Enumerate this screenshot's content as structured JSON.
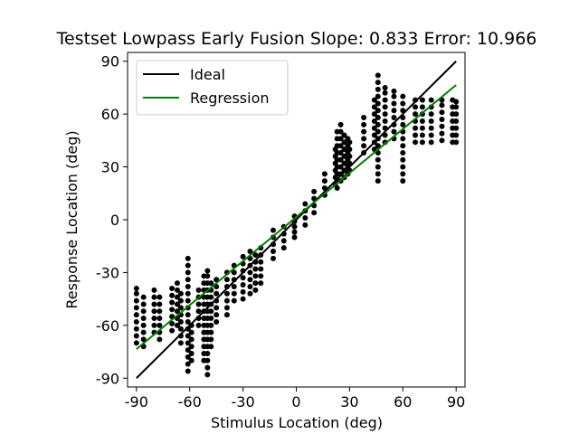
{
  "chart_data": {
    "type": "scatter",
    "title": "Testset Lowpass Early Fusion Slope: 0.833 Error: 10.966",
    "xlabel": "Stimulus Location (deg)",
    "ylabel": "Response Location (deg)",
    "xlim": [
      -95,
      95
    ],
    "ylim": [
      -95,
      95
    ],
    "xticks": [
      "-90",
      "-60",
      "-30",
      "0",
      "30",
      "60",
      "90"
    ],
    "yticks": [
      "-90",
      "-60",
      "-30",
      "0",
      "30",
      "60",
      "90"
    ],
    "grid": false,
    "legend_position": "top-left",
    "lines": [
      {
        "name": "Ideal",
        "color": "#000000",
        "x": [
          -90,
          90
        ],
        "y": [
          -90,
          90
        ]
      },
      {
        "name": "Regression",
        "color": "#008000",
        "x": [
          -90,
          90
        ],
        "y": [
          -73.5,
          76.5
        ]
      }
    ],
    "scatter_color": "#000000",
    "scatter_columns": [
      {
        "x": -90,
        "y": [
          -70,
          -66,
          -62,
          -58,
          -54,
          -50,
          -46,
          -42,
          -39
        ]
      },
      {
        "x": -86,
        "y": [
          -72,
          -68,
          -64,
          -60,
          -56,
          -52,
          -48,
          -44
        ]
      },
      {
        "x": -80,
        "y": [
          -64,
          -60,
          -56,
          -52,
          -48,
          -44,
          -40
        ]
      },
      {
        "x": -77,
        "y": [
          -68,
          -64,
          -60,
          -56,
          -52,
          -48,
          -44
        ]
      },
      {
        "x": -70,
        "y": [
          -63,
          -59,
          -55,
          -51,
          -47,
          -43,
          -39
        ]
      },
      {
        "x": -67,
        "y": [
          -60,
          -56,
          -52,
          -48,
          -44,
          -40,
          -36
        ]
      },
      {
        "x": -65,
        "y": [
          -70,
          -66,
          -62,
          -58,
          -54,
          -50,
          -46,
          -42
        ]
      },
      {
        "x": -61,
        "y": [
          -86,
          -82,
          -78,
          -74,
          -70,
          -66,
          -62,
          -58,
          -54,
          -50,
          -46,
          -42,
          -38,
          -34,
          -30,
          -26,
          -22
        ]
      },
      {
        "x": -59,
        "y": [
          -80,
          -76,
          -72,
          -68,
          -64,
          -60
        ]
      },
      {
        "x": -55,
        "y": [
          -60,
          -56,
          -52,
          -48,
          -44,
          -40
        ]
      },
      {
        "x": -52,
        "y": [
          -80,
          -76,
          -72,
          -68,
          -64,
          -60,
          -56,
          -52,
          -48,
          -44,
          -40,
          -36,
          -32
        ]
      },
      {
        "x": -50,
        "y": [
          -88,
          -84,
          -80,
          -76,
          -72,
          -68,
          -64,
          -60,
          -56,
          -52,
          -48,
          -44,
          -40,
          -36,
          -32,
          -29
        ]
      },
      {
        "x": -48,
        "y": [
          -72,
          -68,
          -64,
          -60,
          -56,
          -52,
          -48,
          -44,
          -40,
          -36
        ]
      },
      {
        "x": -45,
        "y": [
          -58,
          -54,
          -50,
          -46,
          -42,
          -38,
          -34
        ]
      },
      {
        "x": -39,
        "y": [
          -54,
          -50,
          -46,
          -42,
          -38,
          -34,
          -30
        ]
      },
      {
        "x": -35,
        "y": [
          -46,
          -42,
          -38,
          -34,
          -30,
          -26
        ]
      },
      {
        "x": -30,
        "y": [
          -45,
          -41,
          -37,
          -33,
          -29,
          -25,
          -21
        ]
      },
      {
        "x": -26,
        "y": [
          -42,
          -38,
          -34,
          -30,
          -26,
          -22,
          -18
        ]
      },
      {
        "x": -23,
        "y": [
          -40,
          -36,
          -32,
          -28,
          -24,
          -20
        ]
      },
      {
        "x": -20,
        "y": [
          -36,
          -32,
          -28,
          -24,
          -20,
          -16
        ]
      },
      {
        "x": -13,
        "y": [
          -22,
          -18,
          -14,
          -10,
          -6
        ]
      },
      {
        "x": -7,
        "y": [
          -16,
          -12,
          -8,
          -4
        ]
      },
      {
        "x": -1,
        "y": [
          -10,
          -7,
          -4,
          -1,
          2
        ]
      },
      {
        "x": 5,
        "y": [
          -3,
          1,
          5,
          9
        ]
      },
      {
        "x": 10,
        "y": [
          4,
          8,
          12,
          16
        ]
      },
      {
        "x": 16,
        "y": [
          14,
          18,
          22,
          26
        ]
      },
      {
        "x": 22,
        "y": [
          20,
          24,
          28,
          32,
          36,
          40
        ]
      },
      {
        "x": 23,
        "y": [
          18,
          22,
          26,
          30,
          34,
          38,
          42,
          46,
          50
        ]
      },
      {
        "x": 25,
        "y": [
          22,
          26,
          30,
          34,
          38,
          42,
          46,
          50,
          54
        ]
      },
      {
        "x": 27,
        "y": [
          24,
          28,
          32,
          36,
          40,
          44,
          48
        ]
      },
      {
        "x": 29,
        "y": [
          26,
          30,
          34,
          38,
          42,
          46
        ]
      },
      {
        "x": 30,
        "y": [
          28,
          32,
          36,
          40,
          44
        ]
      },
      {
        "x": 38,
        "y": [
          38,
          42,
          46,
          50,
          54,
          58
        ]
      },
      {
        "x": 44,
        "y": [
          40,
          44,
          48,
          52,
          56,
          60,
          64,
          68
        ]
      },
      {
        "x": 46,
        "y": [
          22,
          26,
          30,
          34,
          38,
          42,
          46,
          50,
          54,
          58,
          62,
          66,
          70,
          74,
          78,
          82
        ]
      },
      {
        "x": 50,
        "y": [
          44,
          48,
          52,
          56,
          60,
          64,
          68,
          72,
          75
        ]
      },
      {
        "x": 55,
        "y": [
          46,
          50,
          54,
          58,
          62,
          66,
          70,
          73
        ]
      },
      {
        "x": 60,
        "y": [
          22,
          26,
          30,
          34,
          38,
          42,
          46,
          50,
          54,
          58,
          62,
          66,
          70
        ]
      },
      {
        "x": 67,
        "y": [
          44,
          48,
          52,
          56,
          60,
          64,
          68
        ]
      },
      {
        "x": 71,
        "y": [
          44,
          48,
          52,
          56,
          60,
          64,
          68
        ]
      },
      {
        "x": 76,
        "y": [
          44,
          48,
          52,
          56,
          60,
          64,
          68
        ]
      },
      {
        "x": 82,
        "y": [
          45,
          49,
          53,
          57,
          61,
          65,
          68
        ]
      },
      {
        "x": 88,
        "y": [
          44,
          48,
          52,
          56,
          60,
          64,
          68
        ]
      },
      {
        "x": 90,
        "y": [
          44,
          48,
          52,
          56,
          60,
          64,
          67
        ]
      }
    ]
  }
}
